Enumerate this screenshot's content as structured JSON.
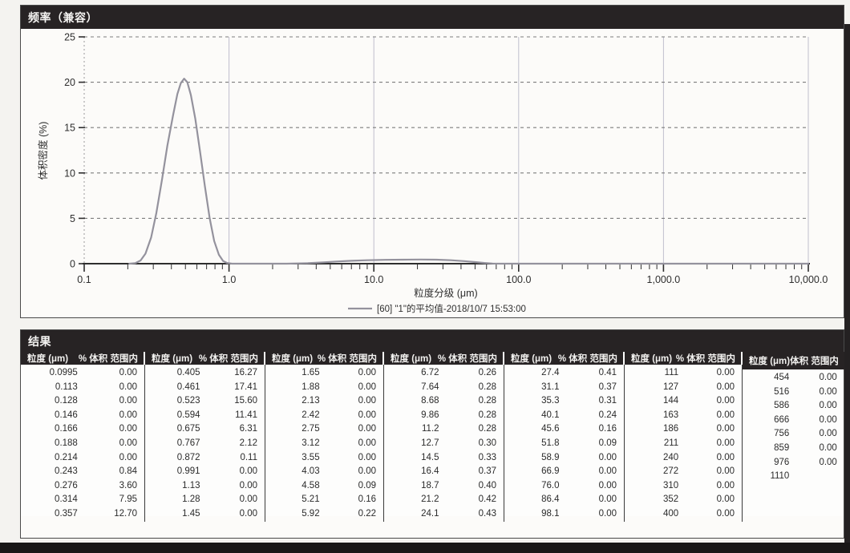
{
  "chart_panel": {
    "title": "频率（兼容）"
  },
  "chart_data": {
    "type": "line",
    "title": "频率（兼容）",
    "xlabel": "粒度分级 (μm)",
    "ylabel": "体积密度 (%)",
    "x_scale": "log",
    "xlim": [
      0.1,
      10000
    ],
    "ylim": [
      0,
      25
    ],
    "y_ticks": [
      0,
      5,
      10,
      15,
      20,
      25
    ],
    "x_tick_values": [
      0.1,
      1,
      10,
      100,
      1000,
      10000
    ],
    "x_tick_labels": [
      "0.1",
      "1.0",
      "10.0",
      "100.0",
      "1,000.0",
      "10,000.0"
    ],
    "grid": "horizontal-dashed and vertical-solid at decades",
    "legend_position": "bottom-center",
    "series": [
      {
        "name": "[60] \"1\"的平均值-2018/10/7 15:53:00",
        "color": "#94929d",
        "points": [
          [
            0.205,
            0
          ],
          [
            0.225,
            0.05
          ],
          [
            0.245,
            0.35
          ],
          [
            0.265,
            1.1
          ],
          [
            0.29,
            2.9
          ],
          [
            0.315,
            5.6
          ],
          [
            0.345,
            9.3
          ],
          [
            0.375,
            13.0
          ],
          [
            0.41,
            16.3
          ],
          [
            0.44,
            18.7
          ],
          [
            0.465,
            19.9
          ],
          [
            0.49,
            20.4
          ],
          [
            0.515,
            20.0
          ],
          [
            0.545,
            18.6
          ],
          [
            0.585,
            16.0
          ],
          [
            0.63,
            12.4
          ],
          [
            0.68,
            8.6
          ],
          [
            0.735,
            5.0
          ],
          [
            0.79,
            2.5
          ],
          [
            0.85,
            1.0
          ],
          [
            0.91,
            0.3
          ],
          [
            0.97,
            0.08
          ],
          [
            1.05,
            0
          ],
          [
            1.5,
            0
          ],
          [
            2.5,
            0
          ],
          [
            3.5,
            0.05
          ],
          [
            4.5,
            0.15
          ],
          [
            5.5,
            0.24
          ],
          [
            7,
            0.32
          ],
          [
            9,
            0.38
          ],
          [
            12,
            0.42
          ],
          [
            16,
            0.44
          ],
          [
            21,
            0.46
          ],
          [
            27,
            0.44
          ],
          [
            34,
            0.38
          ],
          [
            42,
            0.28
          ],
          [
            50,
            0.18
          ],
          [
            58,
            0.08
          ],
          [
            66,
            0.02
          ],
          [
            75,
            0
          ],
          [
            10000,
            0
          ]
        ]
      }
    ]
  },
  "results": {
    "title": "结果",
    "group_widths": [
      155,
      150,
      148,
      150,
      150,
      147,
      126
    ],
    "columns": [
      {
        "header_size": "粒度 (μm)",
        "header_pct": "% 体积 范围内",
        "rows": [
          [
            "0.0995",
            "0.00"
          ],
          [
            "0.113",
            "0.00"
          ],
          [
            "0.128",
            "0.00"
          ],
          [
            "0.146",
            "0.00"
          ],
          [
            "0.166",
            "0.00"
          ],
          [
            "0.188",
            "0.00"
          ],
          [
            "0.214",
            "0.00"
          ],
          [
            "0.243",
            "0.84"
          ],
          [
            "0.276",
            "3.60"
          ],
          [
            "0.314",
            "7.95"
          ],
          [
            "0.357",
            "12.70"
          ]
        ]
      },
      {
        "header_size": "粒度 (μm)",
        "header_pct": "% 体积 范围内",
        "rows": [
          [
            "0.405",
            "16.27"
          ],
          [
            "0.461",
            "17.41"
          ],
          [
            "0.523",
            "15.60"
          ],
          [
            "0.594",
            "11.41"
          ],
          [
            "0.675",
            "6.31"
          ],
          [
            "0.767",
            "2.12"
          ],
          [
            "0.872",
            "0.11"
          ],
          [
            "0.991",
            "0.00"
          ],
          [
            "1.13",
            "0.00"
          ],
          [
            "1.28",
            "0.00"
          ],
          [
            "1.45",
            "0.00"
          ]
        ]
      },
      {
        "header_size": "粒度 (μm)",
        "header_pct": "% 体积 范围内",
        "rows": [
          [
            "1.65",
            "0.00"
          ],
          [
            "1.88",
            "0.00"
          ],
          [
            "2.13",
            "0.00"
          ],
          [
            "2.42",
            "0.00"
          ],
          [
            "2.75",
            "0.00"
          ],
          [
            "3.12",
            "0.00"
          ],
          [
            "3.55",
            "0.00"
          ],
          [
            "4.03",
            "0.00"
          ],
          [
            "4.58",
            "0.09"
          ],
          [
            "5.21",
            "0.16"
          ],
          [
            "5.92",
            "0.22"
          ]
        ]
      },
      {
        "header_size": "粒度 (μm)",
        "header_pct": "% 体积 范围内",
        "rows": [
          [
            "6.72",
            "0.26"
          ],
          [
            "7.64",
            "0.28"
          ],
          [
            "8.68",
            "0.28"
          ],
          [
            "9.86",
            "0.28"
          ],
          [
            "11.2",
            "0.28"
          ],
          [
            "12.7",
            "0.30"
          ],
          [
            "14.5",
            "0.33"
          ],
          [
            "16.4",
            "0.37"
          ],
          [
            "18.7",
            "0.40"
          ],
          [
            "21.2",
            "0.42"
          ],
          [
            "24.1",
            "0.43"
          ]
        ]
      },
      {
        "header_size": "粒度 (μm)",
        "header_pct": "% 体积 范围内",
        "rows": [
          [
            "27.4",
            "0.41"
          ],
          [
            "31.1",
            "0.37"
          ],
          [
            "35.3",
            "0.31"
          ],
          [
            "40.1",
            "0.24"
          ],
          [
            "45.6",
            "0.16"
          ],
          [
            "51.8",
            "0.09"
          ],
          [
            "58.9",
            "0.00"
          ],
          [
            "66.9",
            "0.00"
          ],
          [
            "76.0",
            "0.00"
          ],
          [
            "86.4",
            "0.00"
          ],
          [
            "98.1",
            "0.00"
          ]
        ]
      },
      {
        "header_size": "粒度 (μm)",
        "header_pct": "% 体积 范围内",
        "rows": [
          [
            "111",
            "0.00"
          ],
          [
            "127",
            "0.00"
          ],
          [
            "144",
            "0.00"
          ],
          [
            "163",
            "0.00"
          ],
          [
            "186",
            "0.00"
          ],
          [
            "211",
            "0.00"
          ],
          [
            "240",
            "0.00"
          ],
          [
            "272",
            "0.00"
          ],
          [
            "310",
            "0.00"
          ],
          [
            "352",
            "0.00"
          ],
          [
            "400",
            "0.00"
          ]
        ]
      },
      {
        "header_size": "粒度 (μm)",
        "header_pct": "体积 范围内",
        "rows": [
          [
            "454",
            "0.00"
          ],
          [
            "516",
            "0.00"
          ],
          [
            "586",
            "0.00"
          ],
          [
            "666",
            "0.00"
          ],
          [
            "756",
            "0.00"
          ],
          [
            "859",
            "0.00"
          ],
          [
            "976",
            "0.00"
          ],
          [
            "1110",
            ""
          ]
        ]
      }
    ]
  }
}
